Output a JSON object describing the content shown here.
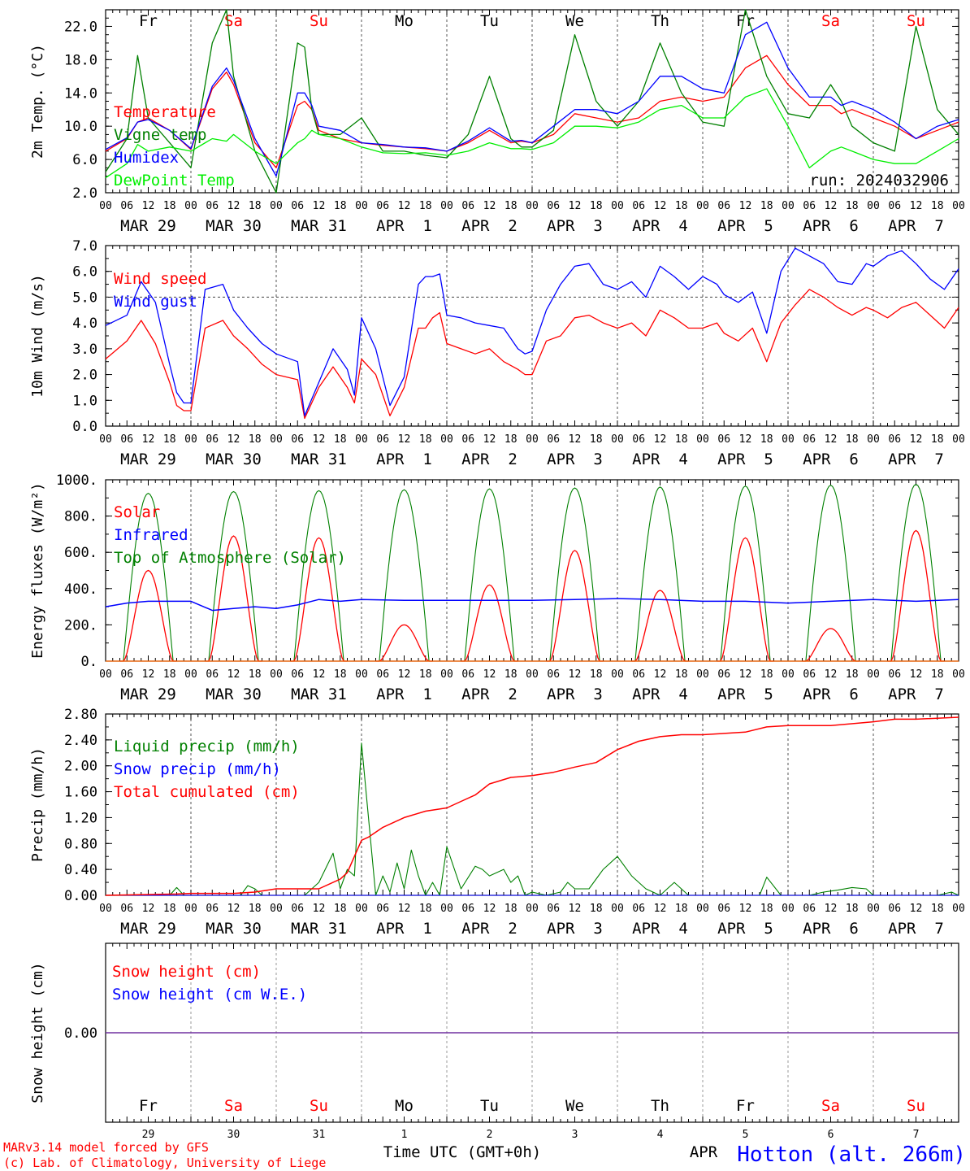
{
  "run_label": "run: 2024032906",
  "days": [
    "Fr",
    "Sa",
    "Su",
    "Mo",
    "Tu",
    "We",
    "Th",
    "Fr",
    "Sa",
    "Su"
  ],
  "weekend_flags": [
    false,
    true,
    true,
    false,
    false,
    false,
    false,
    false,
    true,
    true
  ],
  "date_labels": [
    "MAR 29",
    "MAR 30",
    "MAR 31",
    "APR  1",
    "APR  2",
    "APR  3",
    "APR  4",
    "APR  5",
    "APR  6",
    "APR  7"
  ],
  "hour_ticks": [
    "00",
    "06",
    "12",
    "18"
  ],
  "bottom_day_numbers": [
    "29",
    "30",
    "31",
    "1",
    "2",
    "3",
    "4",
    "5",
    "6",
    "7"
  ],
  "month_label": "APR",
  "xlabel": "Time UTC (GMT+0h)",
  "credit_line1": "MARv3.14 model forced by GFS",
  "credit_line2": "(c) Lab. of Climatology, University of Liege",
  "station": "Hotton (alt. 266m)",
  "colors": {
    "red": "#ff0000",
    "dark_green": "#008000",
    "blue": "#0000ff",
    "light_green": "#00ee00",
    "purple": "#7030a0"
  },
  "chart_data": [
    {
      "type": "line",
      "ylabel": "2m Temp. (°C)",
      "ylim": [
        2.0,
        24.0
      ],
      "yticks": [
        "2.0",
        "6.0",
        "10.0",
        "14.0",
        "18.0",
        "22.0"
      ],
      "x_hours": [
        0,
        6,
        9,
        12,
        18,
        24,
        30,
        34,
        36,
        42,
        48,
        54,
        56,
        58,
        60,
        66,
        72,
        78,
        84,
        90,
        96,
        102,
        108,
        114,
        117,
        120,
        126,
        132,
        138,
        144,
        150,
        156,
        162,
        168,
        174,
        180,
        186,
        192,
        198,
        204,
        207,
        210,
        216,
        222,
        228,
        234,
        240
      ],
      "series": [
        {
          "name": "Temperature",
          "color": "#ff0000",
          "values": [
            7.0,
            8.5,
            10.5,
            11.0,
            9.5,
            7.2,
            14.5,
            16.5,
            15.0,
            8.0,
            5.0,
            12.5,
            13.0,
            12.0,
            9.5,
            8.5,
            8.0,
            7.7,
            7.5,
            7.3,
            7.0,
            8.0,
            9.5,
            8.0,
            8.2,
            8.0,
            9.0,
            11.5,
            11.0,
            10.5,
            11.0,
            13.0,
            13.5,
            13.0,
            13.5,
            17.0,
            18.5,
            15.0,
            12.5,
            12.5,
            11.5,
            12.0,
            11.0,
            10.0,
            8.5,
            9.5,
            10.5
          ]
        },
        {
          "name": "Vigne temp",
          "color": "#008000",
          "values": [
            4.5,
            8.5,
            18.5,
            11.0,
            8.0,
            5.0,
            20.0,
            24.0,
            16.0,
            7.0,
            1.5,
            20.0,
            19.5,
            12.0,
            9.0,
            9.0,
            11.0,
            7.0,
            7.0,
            6.5,
            6.2,
            9.0,
            16.0,
            8.5,
            7.5,
            7.5,
            9.5,
            21.0,
            13.0,
            10.0,
            13.0,
            20.0,
            14.0,
            10.5,
            10.0,
            24.0,
            16.0,
            11.5,
            11.0,
            15.0,
            13.0,
            10.0,
            8.0,
            7.0,
            22.0,
            12.0,
            9.0
          ]
        },
        {
          "name": "Humidex",
          "color": "#0000ff",
          "values": [
            7.2,
            8.6,
            10.5,
            10.8,
            9.5,
            7.3,
            14.8,
            17.0,
            15.5,
            8.5,
            4.0,
            14.0,
            14.0,
            12.5,
            10.0,
            9.5,
            8.0,
            7.8,
            7.5,
            7.4,
            7.0,
            8.2,
            9.8,
            8.2,
            8.3,
            8.0,
            10.0,
            12.0,
            12.0,
            11.5,
            13.0,
            16.0,
            16.0,
            14.5,
            14.0,
            21.0,
            22.5,
            17.0,
            13.5,
            13.5,
            12.5,
            13.0,
            12.0,
            10.5,
            8.5,
            10.0,
            10.8
          ]
        },
        {
          "name": "DewPoint Temp",
          "color": "#00ee00",
          "values": [
            3.8,
            5.5,
            7.8,
            7.0,
            7.5,
            7.0,
            8.5,
            8.2,
            9.0,
            7.0,
            5.5,
            8.0,
            8.5,
            9.5,
            9.0,
            8.5,
            7.5,
            6.8,
            6.7,
            6.8,
            6.5,
            7.0,
            8.0,
            7.3,
            7.3,
            7.2,
            8.0,
            10.0,
            10.0,
            9.8,
            10.5,
            12.0,
            12.5,
            11.0,
            11.0,
            13.5,
            14.5,
            10.0,
            5.0,
            7.0,
            7.5,
            7.0,
            6.0,
            5.5,
            5.5,
            7.0,
            8.5
          ]
        }
      ],
      "legend_placement": "left"
    },
    {
      "type": "line",
      "ylabel": "10m Wind (m/s)",
      "ylim": [
        0.0,
        7.0
      ],
      "yticks": [
        "0.0",
        "1.0",
        "2.0",
        "3.0",
        "4.0",
        "5.0",
        "6.0",
        "7.0"
      ],
      "reference_line": 5.0,
      "x_hours": [
        0,
        6,
        10,
        14,
        18,
        20,
        22,
        24,
        28,
        33,
        36,
        40,
        44,
        48,
        54,
        56,
        60,
        64,
        68,
        70,
        72,
        76,
        80,
        84,
        88,
        90,
        92,
        94,
        96,
        100,
        104,
        108,
        112,
        116,
        118,
        120,
        124,
        128,
        132,
        136,
        140,
        144,
        148,
        152,
        156,
        160,
        164,
        168,
        172,
        174,
        178,
        182,
        186,
        190,
        194,
        198,
        202,
        206,
        210,
        214,
        216,
        220,
        224,
        228,
        232,
        236,
        240
      ],
      "series": [
        {
          "name": "Wind speed",
          "color": "#ff0000",
          "values": [
            2.6,
            3.3,
            4.1,
            3.2,
            1.7,
            0.8,
            0.6,
            0.6,
            3.8,
            4.1,
            3.5,
            3.0,
            2.4,
            2.0,
            1.8,
            0.3,
            1.5,
            2.3,
            1.5,
            0.9,
            2.6,
            2.0,
            0.4,
            1.5,
            3.8,
            3.8,
            4.2,
            4.4,
            3.2,
            3.0,
            2.8,
            3.0,
            2.5,
            2.2,
            2.0,
            2.0,
            3.3,
            3.5,
            4.2,
            4.3,
            4.0,
            3.8,
            4.0,
            3.5,
            4.5,
            4.2,
            3.8,
            3.8,
            4.0,
            3.6,
            3.3,
            3.8,
            2.5,
            4.0,
            4.7,
            5.3,
            5.0,
            4.6,
            4.3,
            4.6,
            4.5,
            4.2,
            4.6,
            4.8,
            4.3,
            3.8,
            4.6
          ]
        },
        {
          "name": "Wind gust",
          "color": "#0000ff",
          "values": [
            3.9,
            4.3,
            5.6,
            4.8,
            2.4,
            1.3,
            0.9,
            0.9,
            5.3,
            5.5,
            4.5,
            3.8,
            3.2,
            2.8,
            2.5,
            0.4,
            1.7,
            3.0,
            2.2,
            1.2,
            4.2,
            3.0,
            0.8,
            1.9,
            5.5,
            5.8,
            5.8,
            5.9,
            4.3,
            4.2,
            4.0,
            3.9,
            3.8,
            3.0,
            2.8,
            2.9,
            4.5,
            5.5,
            6.2,
            6.3,
            5.5,
            5.3,
            5.6,
            5.0,
            6.2,
            5.8,
            5.3,
            5.8,
            5.5,
            5.1,
            4.8,
            5.2,
            3.6,
            6.0,
            6.9,
            6.6,
            6.3,
            5.6,
            5.5,
            6.3,
            6.2,
            6.6,
            6.8,
            6.3,
            5.7,
            5.3,
            6.1
          ]
        }
      ],
      "legend_placement": "left"
    },
    {
      "type": "line",
      "ylabel": "Energy fluxes (W/m²)",
      "ylim": [
        0,
        1000
      ],
      "yticks": [
        "0.",
        "200.",
        "400.",
        "600.",
        "800.",
        "1000."
      ],
      "series": [
        {
          "name": "Solar",
          "color": "#ff0000",
          "diurnal_noon_peak": [
            500,
            690,
            680,
            200,
            420,
            610,
            390,
            680,
            180,
            720
          ]
        },
        {
          "name": "Infrared",
          "color": "#0000ff",
          "x_hours": [
            0,
            6,
            12,
            18,
            24,
            30,
            36,
            42,
            48,
            54,
            60,
            66,
            72,
            84,
            96,
            108,
            120,
            132,
            144,
            156,
            168,
            180,
            192,
            204,
            216,
            228,
            240
          ],
          "values": [
            300,
            320,
            330,
            330,
            330,
            280,
            290,
            300,
            290,
            310,
            340,
            330,
            340,
            335,
            335,
            335,
            335,
            340,
            345,
            340,
            330,
            330,
            320,
            330,
            340,
            330,
            340
          ]
        },
        {
          "name": "Top of Atmosphere (Solar)",
          "color": "#008000",
          "diurnal_noon_peak": [
            925,
            935,
            940,
            945,
            950,
            955,
            960,
            965,
            970,
            975
          ]
        }
      ],
      "legend_placement": "left"
    },
    {
      "type": "line",
      "ylabel": "Precip (mm/h)",
      "ylim": [
        0.0,
        2.8
      ],
      "yticks": [
        "0.00",
        "0.40",
        "0.80",
        "1.20",
        "1.60",
        "2.00",
        "2.40",
        "2.80"
      ],
      "series": [
        {
          "name": "Liquid precip (mm/h)",
          "color": "#008000",
          "x_hours": [
            0,
            18,
            20,
            22,
            28,
            36,
            38,
            40,
            42,
            44,
            46,
            48,
            56,
            60,
            64,
            66,
            68,
            70,
            72,
            76,
            78,
            80,
            82,
            84,
            86,
            88,
            90,
            92,
            94,
            96,
            100,
            104,
            106,
            108,
            112,
            114,
            116,
            118,
            120,
            124,
            128,
            130,
            132,
            136,
            140,
            144,
            148,
            152,
            156,
            160,
            164,
            168,
            172,
            176,
            180,
            184,
            186,
            190,
            194,
            198,
            202,
            206,
            210,
            214,
            216,
            222,
            228,
            234,
            238,
            240
          ],
          "values": [
            0.0,
            0.0,
            0.12,
            0.0,
            0.0,
            0.0,
            0.0,
            0.15,
            0.1,
            0.0,
            0.0,
            0.0,
            0.0,
            0.2,
            0.65,
            0.1,
            0.4,
            0.3,
            2.35,
            0.0,
            0.3,
            0.05,
            0.5,
            0.1,
            0.7,
            0.3,
            0.0,
            0.2,
            0.0,
            0.75,
            0.1,
            0.45,
            0.4,
            0.3,
            0.4,
            0.2,
            0.3,
            0.0,
            0.05,
            0.0,
            0.05,
            0.2,
            0.1,
            0.1,
            0.4,
            0.6,
            0.3,
            0.1,
            0.0,
            0.2,
            0.0,
            0.0,
            0.0,
            0.0,
            0.0,
            0.0,
            0.28,
            0.0,
            0.0,
            0.0,
            0.05,
            0.08,
            0.12,
            0.1,
            0.0,
            0.0,
            0.0,
            0.0,
            0.05,
            0.0
          ]
        },
        {
          "name": "Snow precip (mm/h)",
          "color": "#0000ff",
          "x_hours": [
            0,
            240
          ],
          "values": [
            0.0,
            0.0
          ]
        },
        {
          "name": "Total cumulated (cm)",
          "color": "#ff0000",
          "x_hours": [
            0,
            20,
            24,
            36,
            42,
            48,
            60,
            66,
            68,
            72,
            74,
            78,
            84,
            90,
            96,
            100,
            104,
            108,
            114,
            120,
            126,
            132,
            138,
            144,
            150,
            156,
            162,
            168,
            174,
            180,
            186,
            192,
            204,
            216,
            222,
            228,
            240
          ],
          "values": [
            0.0,
            0.02,
            0.03,
            0.03,
            0.05,
            0.1,
            0.1,
            0.25,
            0.35,
            0.85,
            0.9,
            1.05,
            1.2,
            1.3,
            1.35,
            1.45,
            1.55,
            1.72,
            1.82,
            1.85,
            1.9,
            1.98,
            2.05,
            2.25,
            2.38,
            2.45,
            2.48,
            2.48,
            2.5,
            2.52,
            2.6,
            2.62,
            2.62,
            2.68,
            2.72,
            2.72,
            2.75
          ]
        }
      ],
      "legend_placement": "left"
    },
    {
      "type": "line",
      "ylabel": "Snow height (cm)",
      "yticks": [
        "0.00"
      ],
      "series": [
        {
          "name": "Snow height (cm)",
          "color": "#ff0000",
          "x_hours": [
            0,
            240
          ],
          "values": [
            0.0,
            0.0
          ]
        },
        {
          "name": "Snow height (cm W.E.)",
          "color": "#0000ff",
          "x_hours": [
            0,
            240
          ],
          "values": [
            0.0,
            0.0
          ]
        }
      ],
      "legend_placement": "left"
    }
  ]
}
